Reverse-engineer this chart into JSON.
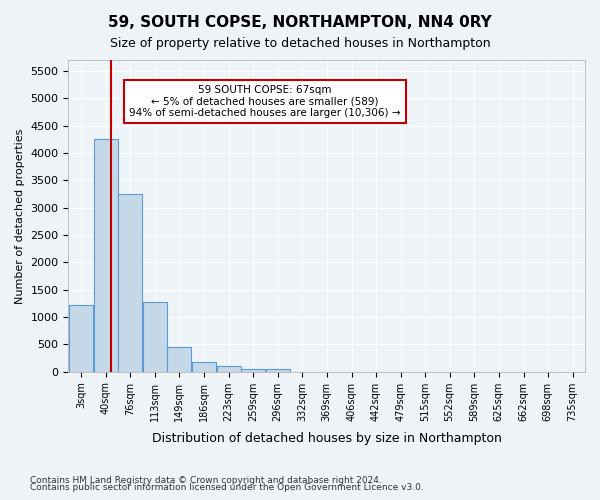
{
  "title": "59, SOUTH COPSE, NORTHAMPTON, NN4 0RY",
  "subtitle": "Size of property relative to detached houses in Northampton",
  "xlabel": "Distribution of detached houses by size in Northampton",
  "ylabel": "Number of detached properties",
  "annotation_title": "59 SOUTH COPSE: 67sqm",
  "annotation_line1": "← 5% of detached houses are smaller (589)",
  "annotation_line2": "94% of semi-detached houses are larger (10,306) →",
  "footnote1": "Contains HM Land Registry data © Crown copyright and database right 2024.",
  "footnote2": "Contains public sector information licensed under the Open Government Licence v3.0.",
  "bar_color": "#c5d8e8",
  "bar_edge_color": "#5b9bd5",
  "vline_color": "#c00000",
  "vline_x": 67,
  "categories": [
    "3sqm",
    "40sqm",
    "76sqm",
    "113sqm",
    "149sqm",
    "186sqm",
    "223sqm",
    "259sqm",
    "296sqm",
    "332sqm",
    "369sqm",
    "406sqm",
    "442sqm",
    "479sqm",
    "515sqm",
    "552sqm",
    "589sqm",
    "625sqm",
    "662sqm",
    "698sqm",
    "735sqm"
  ],
  "bin_edges": [
    3,
    40,
    76,
    113,
    149,
    186,
    223,
    259,
    296,
    332,
    369,
    406,
    442,
    479,
    515,
    552,
    589,
    625,
    662,
    698,
    735
  ],
  "values": [
    1220,
    4250,
    3250,
    1270,
    460,
    175,
    100,
    50,
    50,
    0,
    0,
    0,
    0,
    0,
    0,
    0,
    0,
    0,
    0,
    0
  ],
  "ylim": [
    0,
    5700
  ],
  "yticks": [
    0,
    500,
    1000,
    1500,
    2000,
    2500,
    3000,
    3500,
    4000,
    4500,
    5000,
    5500
  ],
  "background_color": "#eef3f8",
  "plot_bg_color": "#eef3f8",
  "grid_color": "#ffffff",
  "annotation_box_color": "#ffffff",
  "annotation_box_edge": "#c00000"
}
